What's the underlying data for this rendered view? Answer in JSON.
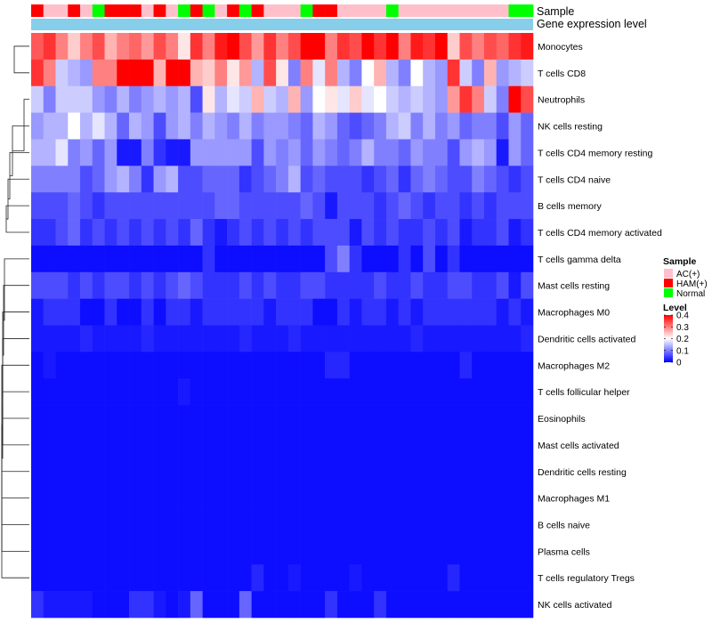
{
  "chart_data": {
    "type": "heatmap",
    "title": "",
    "annotation_tracks": [
      "Sample",
      "Gene expression level"
    ],
    "sample_groups": [
      "HAM(+)",
      "AC(+)",
      "AC(+)",
      "HAM(+)",
      "AC(+)",
      "Normal",
      "HAM(+)",
      "HAM(+)",
      "HAM(+)",
      "AC(+)",
      "HAM(+)",
      "AC(+)",
      "Normal",
      "HAM(+)",
      "Normal",
      "AC(+)",
      "HAM(+)",
      "Normal",
      "HAM(+)",
      "AC(+)",
      "AC(+)",
      "AC(+)",
      "Normal",
      "HAM(+)",
      "HAM(+)",
      "AC(+)",
      "AC(+)",
      "AC(+)",
      "AC(+)",
      "Normal",
      "AC(+)",
      "AC(+)",
      "AC(+)",
      "AC(+)",
      "AC(+)",
      "AC(+)",
      "AC(+)",
      "AC(+)",
      "AC(+)",
      "Normal",
      "Normal"
    ],
    "rows": [
      {
        "name": "Monocytes",
        "values": [
          0.33,
          0.36,
          0.3,
          0.24,
          0.3,
          0.34,
          0.26,
          0.3,
          0.32,
          0.28,
          0.34,
          0.3,
          0.22,
          0.36,
          0.3,
          0.38,
          0.4,
          0.34,
          0.28,
          0.36,
          0.3,
          0.34,
          0.4,
          0.42,
          0.3,
          0.36,
          0.34,
          0.4,
          0.36,
          0.42,
          0.3,
          0.38,
          0.36,
          0.42,
          0.24,
          0.34,
          0.3,
          0.34,
          0.32,
          0.36,
          0.38
        ]
      },
      {
        "name": "T cells CD8",
        "values": [
          0.36,
          0.3,
          0.16,
          0.14,
          0.12,
          0.3,
          0.3,
          0.4,
          0.4,
          0.4,
          0.26,
          0.4,
          0.4,
          0.26,
          0.24,
          0.3,
          0.22,
          0.28,
          0.14,
          0.34,
          0.22,
          0.1,
          0.3,
          0.18,
          0.3,
          0.14,
          0.1,
          0.2,
          0.26,
          0.14,
          0.1,
          0.2,
          0.14,
          0.12,
          0.36,
          0.16,
          0.1,
          0.26,
          0.12,
          0.14,
          0.16
        ]
      },
      {
        "name": "Neutrophils",
        "values": [
          0.16,
          0.1,
          0.16,
          0.16,
          0.16,
          0.12,
          0.1,
          0.14,
          0.1,
          0.12,
          0.14,
          0.12,
          0.14,
          0.06,
          0.22,
          0.14,
          0.18,
          0.16,
          0.26,
          0.16,
          0.14,
          0.26,
          0.12,
          0.2,
          0.22,
          0.18,
          0.24,
          0.18,
          0.2,
          0.16,
          0.14,
          0.16,
          0.14,
          0.12,
          0.28,
          0.36,
          0.3,
          0.16,
          0.1,
          0.4,
          0.34
        ]
      },
      {
        "name": "NK cells resting",
        "values": [
          0.12,
          0.14,
          0.14,
          0.2,
          0.14,
          0.18,
          0.14,
          0.08,
          0.14,
          0.12,
          0.06,
          0.12,
          0.14,
          0.1,
          0.14,
          0.12,
          0.1,
          0.14,
          0.1,
          0.12,
          0.12,
          0.1,
          0.08,
          0.14,
          0.12,
          0.08,
          0.06,
          0.08,
          0.1,
          0.14,
          0.16,
          0.1,
          0.14,
          0.1,
          0.12,
          0.08,
          0.1,
          0.1,
          0.06,
          0.12,
          0.08
        ]
      },
      {
        "name": "T cells CD4 memory resting",
        "values": [
          0.14,
          0.14,
          0.18,
          0.1,
          0.12,
          0.08,
          0.12,
          0.02,
          0.02,
          0.1,
          0.04,
          0.02,
          0.02,
          0.12,
          0.12,
          0.12,
          0.12,
          0.12,
          0.06,
          0.12,
          0.1,
          0.12,
          0.08,
          0.12,
          0.1,
          0.08,
          0.1,
          0.14,
          0.1,
          0.1,
          0.08,
          0.12,
          0.1,
          0.1,
          0.06,
          0.12,
          0.14,
          0.12,
          0.02,
          0.12,
          0.08
        ]
      },
      {
        "name": "T cells CD4 naive",
        "values": [
          0.1,
          0.1,
          0.1,
          0.1,
          0.06,
          0.08,
          0.12,
          0.14,
          0.1,
          0.04,
          0.12,
          0.14,
          0.06,
          0.06,
          0.08,
          0.08,
          0.08,
          0.04,
          0.06,
          0.08,
          0.1,
          0.14,
          0.06,
          0.08,
          0.06,
          0.06,
          0.06,
          0.04,
          0.06,
          0.08,
          0.04,
          0.08,
          0.1,
          0.08,
          0.06,
          0.06,
          0.1,
          0.08,
          0.06,
          0.04,
          0.06
        ]
      },
      {
        "name": "B cells memory",
        "values": [
          0.06,
          0.06,
          0.06,
          0.08,
          0.06,
          0.04,
          0.06,
          0.06,
          0.06,
          0.06,
          0.06,
          0.06,
          0.06,
          0.06,
          0.06,
          0.08,
          0.08,
          0.06,
          0.06,
          0.06,
          0.06,
          0.06,
          0.08,
          0.06,
          0.02,
          0.06,
          0.06,
          0.06,
          0.04,
          0.06,
          0.08,
          0.06,
          0.04,
          0.06,
          0.06,
          0.04,
          0.06,
          0.04,
          0.06,
          0.06,
          0.06
        ]
      },
      {
        "name": "T cells CD4 memory activated",
        "values": [
          0.04,
          0.04,
          0.06,
          0.08,
          0.04,
          0.06,
          0.04,
          0.06,
          0.04,
          0.06,
          0.04,
          0.06,
          0.04,
          0.08,
          0.04,
          0.02,
          0.04,
          0.06,
          0.04,
          0.06,
          0.04,
          0.06,
          0.04,
          0.06,
          0.06,
          0.06,
          0.02,
          0.06,
          0.04,
          0.06,
          0.04,
          0.04,
          0.06,
          0.04,
          0.06,
          0.02,
          0.04,
          0.04,
          0.06,
          0.02,
          0.04
        ]
      },
      {
        "name": "T cells gamma delta",
        "values": [
          0.01,
          0.01,
          0.01,
          0.01,
          0.01,
          0.01,
          0.01,
          0.01,
          0.01,
          0.01,
          0.01,
          0.01,
          0.01,
          0.01,
          0.04,
          0.01,
          0.01,
          0.01,
          0.01,
          0.01,
          0.01,
          0.01,
          0.01,
          0.01,
          0.06,
          0.1,
          0.04,
          0.01,
          0.01,
          0.01,
          0.04,
          0.01,
          0.06,
          0.01,
          0.04,
          0.01,
          0.01,
          0.01,
          0.01,
          0.01,
          0.01
        ]
      },
      {
        "name": "Mast cells resting",
        "values": [
          0.06,
          0.06,
          0.06,
          0.04,
          0.06,
          0.04,
          0.06,
          0.06,
          0.04,
          0.06,
          0.04,
          0.06,
          0.08,
          0.06,
          0.04,
          0.04,
          0.04,
          0.06,
          0.04,
          0.06,
          0.04,
          0.04,
          0.06,
          0.06,
          0.04,
          0.04,
          0.04,
          0.04,
          0.06,
          0.04,
          0.04,
          0.06,
          0.04,
          0.04,
          0.06,
          0.06,
          0.04,
          0.04,
          0.06,
          0.02,
          0.06
        ]
      },
      {
        "name": "Macrophages M0",
        "values": [
          0.02,
          0.04,
          0.04,
          0.04,
          0.01,
          0.01,
          0.04,
          0.01,
          0.01,
          0.04,
          0.01,
          0.04,
          0.04,
          0.02,
          0.04,
          0.04,
          0.04,
          0.04,
          0.04,
          0.02,
          0.04,
          0.04,
          0.04,
          0.01,
          0.01,
          0.04,
          0.02,
          0.04,
          0.04,
          0.02,
          0.04,
          0.02,
          0.04,
          0.04,
          0.04,
          0.04,
          0.04,
          0.04,
          0.02,
          0.04,
          0.02
        ]
      },
      {
        "name": "Dendritic cells activated",
        "values": [
          0.02,
          0.02,
          0.02,
          0.02,
          0.03,
          0.02,
          0.02,
          0.02,
          0.02,
          0.03,
          0.02,
          0.02,
          0.02,
          0.02,
          0.02,
          0.02,
          0.02,
          0.03,
          0.02,
          0.02,
          0.02,
          0.03,
          0.02,
          0.02,
          0.02,
          0.02,
          0.02,
          0.02,
          0.02,
          0.02,
          0.02,
          0.03,
          0.02,
          0.02,
          0.02,
          0.02,
          0.02,
          0.02,
          0.02,
          0.02,
          0.03
        ]
      },
      {
        "name": "Macrophages M2",
        "values": [
          0.01,
          0.02,
          0.01,
          0.01,
          0.01,
          0.01,
          0.01,
          0.01,
          0.01,
          0.01,
          0.01,
          0.01,
          0.01,
          0.01,
          0.01,
          0.01,
          0.01,
          0.01,
          0.01,
          0.01,
          0.01,
          0.01,
          0.01,
          0.01,
          0.03,
          0.03,
          0.01,
          0.01,
          0.01,
          0.01,
          0.01,
          0.01,
          0.01,
          0.01,
          0.01,
          0.03,
          0.01,
          0.01,
          0.01,
          0.01,
          0.01
        ]
      },
      {
        "name": "T cells follicular helper",
        "values": [
          0.01,
          0.01,
          0.01,
          0.01,
          0.01,
          0.01,
          0.01,
          0.01,
          0.01,
          0.01,
          0.01,
          0.01,
          0.02,
          0.01,
          0.01,
          0.01,
          0.01,
          0.01,
          0.01,
          0.01,
          0.01,
          0.01,
          0.01,
          0.01,
          0.01,
          0.01,
          0.01,
          0.01,
          0.01,
          0.01,
          0.01,
          0.01,
          0.01,
          0.01,
          0.01,
          0.01,
          0.01,
          0.01,
          0.01,
          0.01,
          0.01
        ]
      },
      {
        "name": "Eosinophils",
        "values": [
          0.01,
          0.01,
          0.01,
          0.01,
          0.01,
          0.01,
          0.01,
          0.01,
          0.01,
          0.01,
          0.01,
          0.01,
          0.01,
          0.01,
          0.01,
          0.01,
          0.01,
          0.01,
          0.01,
          0.01,
          0.01,
          0.01,
          0.01,
          0.01,
          0.01,
          0.01,
          0.01,
          0.01,
          0.01,
          0.01,
          0.01,
          0.01,
          0.01,
          0.01,
          0.01,
          0.01,
          0.01,
          0.01,
          0.01,
          0.01,
          0.01
        ]
      },
      {
        "name": "Mast cells activated",
        "values": [
          0.01,
          0.01,
          0.01,
          0.01,
          0.01,
          0.01,
          0.01,
          0.01,
          0.01,
          0.01,
          0.01,
          0.01,
          0.01,
          0.01,
          0.01,
          0.01,
          0.01,
          0.01,
          0.01,
          0.01,
          0.01,
          0.01,
          0.01,
          0.01,
          0.01,
          0.01,
          0.01,
          0.01,
          0.01,
          0.01,
          0.01,
          0.01,
          0.01,
          0.01,
          0.01,
          0.01,
          0.01,
          0.01,
          0.01,
          0.01,
          0.01
        ]
      },
      {
        "name": "Dendritic cells resting",
        "values": [
          0.01,
          0.01,
          0.01,
          0.01,
          0.01,
          0.01,
          0.01,
          0.01,
          0.01,
          0.01,
          0.01,
          0.01,
          0.01,
          0.01,
          0.01,
          0.01,
          0.01,
          0.01,
          0.01,
          0.01,
          0.01,
          0.01,
          0.01,
          0.01,
          0.01,
          0.01,
          0.01,
          0.01,
          0.01,
          0.01,
          0.01,
          0.01,
          0.01,
          0.01,
          0.01,
          0.01,
          0.01,
          0.01,
          0.01,
          0.01,
          0.01
        ]
      },
      {
        "name": "Macrophages M1",
        "values": [
          0.01,
          0.01,
          0.01,
          0.01,
          0.01,
          0.01,
          0.01,
          0.01,
          0.01,
          0.01,
          0.01,
          0.01,
          0.01,
          0.01,
          0.01,
          0.01,
          0.01,
          0.01,
          0.01,
          0.01,
          0.01,
          0.01,
          0.01,
          0.01,
          0.01,
          0.01,
          0.01,
          0.01,
          0.01,
          0.01,
          0.01,
          0.01,
          0.01,
          0.01,
          0.01,
          0.01,
          0.01,
          0.01,
          0.01,
          0.01,
          0.01
        ]
      },
      {
        "name": "B cells naive",
        "values": [
          0.01,
          0.01,
          0.01,
          0.01,
          0.01,
          0.01,
          0.01,
          0.01,
          0.01,
          0.01,
          0.01,
          0.01,
          0.01,
          0.01,
          0.01,
          0.01,
          0.01,
          0.01,
          0.01,
          0.01,
          0.01,
          0.01,
          0.01,
          0.01,
          0.01,
          0.01,
          0.01,
          0.01,
          0.01,
          0.01,
          0.01,
          0.01,
          0.01,
          0.01,
          0.01,
          0.01,
          0.01,
          0.01,
          0.01,
          0.01,
          0.01
        ]
      },
      {
        "name": "Plasma cells",
        "values": [
          0.01,
          0.01,
          0.01,
          0.01,
          0.01,
          0.01,
          0.01,
          0.01,
          0.01,
          0.01,
          0.01,
          0.01,
          0.01,
          0.01,
          0.01,
          0.01,
          0.01,
          0.01,
          0.01,
          0.01,
          0.01,
          0.01,
          0.01,
          0.01,
          0.01,
          0.01,
          0.01,
          0.01,
          0.01,
          0.01,
          0.01,
          0.01,
          0.01,
          0.01,
          0.01,
          0.01,
          0.01,
          0.01,
          0.01,
          0.01,
          0.01
        ]
      },
      {
        "name": "T cells regulatory  Tregs",
        "values": [
          0.01,
          0.01,
          0.01,
          0.01,
          0.01,
          0.01,
          0.01,
          0.01,
          0.01,
          0.01,
          0.01,
          0.01,
          0.01,
          0.01,
          0.01,
          0.01,
          0.01,
          0.01,
          0.03,
          0.01,
          0.01,
          0.02,
          0.01,
          0.01,
          0.01,
          0.01,
          0.02,
          0.01,
          0.01,
          0.01,
          0.01,
          0.01,
          0.01,
          0.01,
          0.03,
          0.01,
          0.01,
          0.01,
          0.01,
          0.01,
          0.01
        ]
      },
      {
        "name": "NK cells activated",
        "values": [
          0.04,
          0.02,
          0.02,
          0.02,
          0.02,
          0.01,
          0.01,
          0.01,
          0.04,
          0.04,
          0.02,
          0.01,
          0.02,
          0.08,
          0.01,
          0.01,
          0.01,
          0.08,
          0.01,
          0.01,
          0.01,
          0.01,
          0.01,
          0.01,
          0.04,
          0.01,
          0.01,
          0.01,
          0.04,
          0.01,
          0.01,
          0.01,
          0.01,
          0.01,
          0.01,
          0.01,
          0.01,
          0.01,
          0.01,
          0.01,
          0.01
        ]
      }
    ],
    "legend": {
      "sample": {
        "title": "Sample",
        "items": [
          {
            "label": "AC(+)",
            "color": "#ffc0cb"
          },
          {
            "label": "HAM(+)",
            "color": "#ff0000"
          },
          {
            "label": "Normal",
            "color": "#00ff00"
          }
        ]
      },
      "level": {
        "title": "Level",
        "ticks": [
          "0.4",
          "0.3",
          "0.2",
          "0.1",
          "0"
        ],
        "range": [
          0,
          0.4
        ]
      }
    },
    "colors": {
      "low": "#0000ff",
      "mid": "#ffffff",
      "high": "#ff0000",
      "gene_expression_bar": "#87ceeb",
      "text": "#000000",
      "dendrogram": "#222222"
    },
    "dendrogram_merges": [
      [
        13,
        14
      ],
      [
        14,
        15
      ],
      [
        15,
        16
      ],
      [
        16,
        17
      ],
      [
        17,
        18
      ],
      [
        18,
        19
      ],
      [
        19,
        20
      ],
      [
        12,
        13
      ],
      [
        11,
        12
      ],
      [
        10,
        11
      ],
      [
        9,
        10
      ],
      [
        8,
        9
      ],
      [
        6,
        7
      ],
      [
        5,
        6
      ],
      [
        4,
        5
      ],
      [
        3,
        4
      ],
      [
        0,
        1
      ],
      [
        2,
        3
      ]
    ]
  }
}
